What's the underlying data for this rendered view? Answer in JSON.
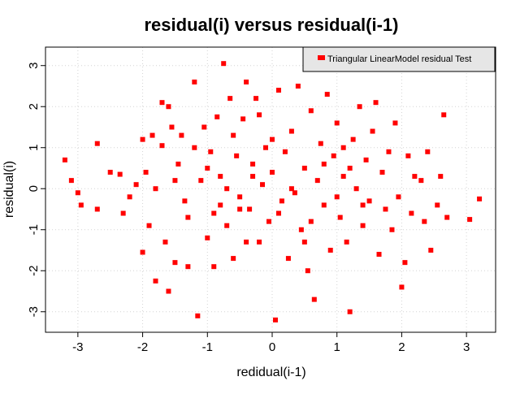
{
  "chart_data": {
    "type": "scatter",
    "title": "residual(i) versus residual(i-1)",
    "xlabel": "redidual(i-1)",
    "ylabel": "residual(i)",
    "xlim": [
      -3.5,
      3.45
    ],
    "ylim": [
      -3.5,
      3.45
    ],
    "x_ticks": [
      -3,
      -2,
      -1,
      0,
      1,
      2,
      3
    ],
    "y_ticks": [
      -3,
      -2,
      -1,
      0,
      1,
      2,
      3
    ],
    "x_tick_labels": [
      "-3",
      "-2",
      "-1",
      "0",
      "1",
      "2",
      "3"
    ],
    "y_tick_labels": [
      "-3",
      "-2",
      "-1",
      "0",
      "1",
      "2",
      "3"
    ],
    "grid": true,
    "legend": {
      "position": "top-right",
      "entries": [
        "Triangular LinearModel residual Test"
      ]
    },
    "colors": {
      "points": "#ff0000",
      "grid": "#d3d3d3",
      "legend_bg": "#e6e6e6",
      "axis": "#000000"
    },
    "series": [
      {
        "name": "Triangular LinearModel residual Test",
        "marker": "square",
        "points": [
          [
            -3.2,
            0.7
          ],
          [
            -3.1,
            0.2
          ],
          [
            -3.0,
            -0.1
          ],
          [
            -2.95,
            -0.4
          ],
          [
            -2.7,
            1.1
          ],
          [
            -2.7,
            -0.5
          ],
          [
            -2.5,
            0.4
          ],
          [
            -2.35,
            0.35
          ],
          [
            -2.3,
            -0.6
          ],
          [
            -2.2,
            -0.2
          ],
          [
            -2.1,
            0.1
          ],
          [
            -2.0,
            1.2
          ],
          [
            -2.0,
            -1.55
          ],
          [
            -1.95,
            0.4
          ],
          [
            -1.9,
            -0.9
          ],
          [
            -1.85,
            1.3
          ],
          [
            -1.8,
            -2.25
          ],
          [
            -1.8,
            0.0
          ],
          [
            -1.7,
            2.1
          ],
          [
            -1.65,
            -1.3
          ],
          [
            -1.6,
            2.0
          ],
          [
            -1.6,
            -2.5
          ],
          [
            -1.55,
            1.5
          ],
          [
            -1.5,
            -1.8
          ],
          [
            -1.45,
            0.6
          ],
          [
            -1.4,
            1.3
          ],
          [
            -1.35,
            -0.3
          ],
          [
            -1.3,
            -1.9
          ],
          [
            -1.2,
            2.6
          ],
          [
            -1.15,
            -3.1
          ],
          [
            -1.1,
            0.2
          ],
          [
            -1.05,
            1.5
          ],
          [
            -1.0,
            -1.2
          ],
          [
            -0.95,
            0.9
          ],
          [
            -0.9,
            -0.6
          ],
          [
            -0.85,
            1.75
          ],
          [
            -0.8,
            0.3
          ],
          [
            -0.75,
            3.05
          ],
          [
            -0.7,
            -0.9
          ],
          [
            -0.65,
            2.2
          ],
          [
            -0.6,
            -1.7
          ],
          [
            -0.55,
            0.8
          ],
          [
            -0.5,
            -0.2
          ],
          [
            -0.45,
            1.7
          ],
          [
            -0.4,
            2.6
          ],
          [
            -0.35,
            -0.5
          ],
          [
            -0.3,
            0.6
          ],
          [
            -0.25,
            2.2
          ],
          [
            -0.2,
            -1.3
          ],
          [
            -0.15,
            0.1
          ],
          [
            -0.1,
            1.0
          ],
          [
            -0.05,
            -0.8
          ],
          [
            0.0,
            0.4
          ],
          [
            0.05,
            -3.2
          ],
          [
            0.1,
            2.4
          ],
          [
            0.15,
            -0.3
          ],
          [
            0.2,
            0.9
          ],
          [
            0.25,
            -1.7
          ],
          [
            0.3,
            1.4
          ],
          [
            0.35,
            -0.1
          ],
          [
            0.4,
            2.5
          ],
          [
            0.45,
            -1.0
          ],
          [
            0.5,
            0.5
          ],
          [
            0.55,
            -2.0
          ],
          [
            0.6,
            1.9
          ],
          [
            0.65,
            -2.7
          ],
          [
            0.7,
            0.2
          ],
          [
            0.75,
            1.1
          ],
          [
            0.8,
            -0.4
          ],
          [
            0.85,
            2.3
          ],
          [
            0.9,
            -1.5
          ],
          [
            0.95,
            0.8
          ],
          [
            1.0,
            1.6
          ],
          [
            1.05,
            -0.7
          ],
          [
            1.1,
            0.3
          ],
          [
            1.15,
            -1.3
          ],
          [
            1.2,
            -3.0
          ],
          [
            1.25,
            1.2
          ],
          [
            1.3,
            0.0
          ],
          [
            1.35,
            2.0
          ],
          [
            1.4,
            -0.9
          ],
          [
            1.45,
            0.7
          ],
          [
            1.5,
            -0.3
          ],
          [
            1.55,
            1.4
          ],
          [
            1.6,
            2.1
          ],
          [
            1.65,
            -1.6
          ],
          [
            1.7,
            0.4
          ],
          [
            1.75,
            -0.5
          ],
          [
            1.8,
            0.9
          ],
          [
            1.85,
            -1.0
          ],
          [
            1.9,
            1.6
          ],
          [
            1.95,
            -0.2
          ],
          [
            2.0,
            -2.4
          ],
          [
            2.05,
            -1.8
          ],
          [
            2.1,
            0.8
          ],
          [
            2.15,
            -0.6
          ],
          [
            2.2,
            0.3
          ],
          [
            2.3,
            0.2
          ],
          [
            2.35,
            -0.8
          ],
          [
            2.4,
            0.9
          ],
          [
            2.45,
            -1.5
          ],
          [
            2.55,
            -0.4
          ],
          [
            2.6,
            0.3
          ],
          [
            2.65,
            1.8
          ],
          [
            2.7,
            -0.7
          ],
          [
            3.05,
            -0.75
          ],
          [
            3.2,
            -0.25
          ],
          [
            -1.7,
            1.05
          ],
          [
            -1.5,
            0.2
          ],
          [
            -1.3,
            -0.7
          ],
          [
            -1.2,
            1.0
          ],
          [
            -0.9,
            -1.9
          ],
          [
            -0.7,
            0.0
          ],
          [
            -0.6,
            1.3
          ],
          [
            -0.4,
            -1.3
          ],
          [
            -0.3,
            0.3
          ],
          [
            -0.2,
            1.8
          ],
          [
            0.1,
            -0.6
          ],
          [
            0.3,
            0.0
          ],
          [
            0.6,
            -0.8
          ],
          [
            0.8,
            0.6
          ],
          [
            1.0,
            -0.2
          ],
          [
            1.2,
            0.5
          ],
          [
            1.4,
            -0.4
          ],
          [
            0.0,
            1.2
          ],
          [
            -0.5,
            -0.5
          ],
          [
            0.5,
            -1.3
          ],
          [
            -1.0,
            0.5
          ],
          [
            1.1,
            1.0
          ],
          [
            -0.8,
            -0.4
          ]
        ]
      }
    ]
  }
}
